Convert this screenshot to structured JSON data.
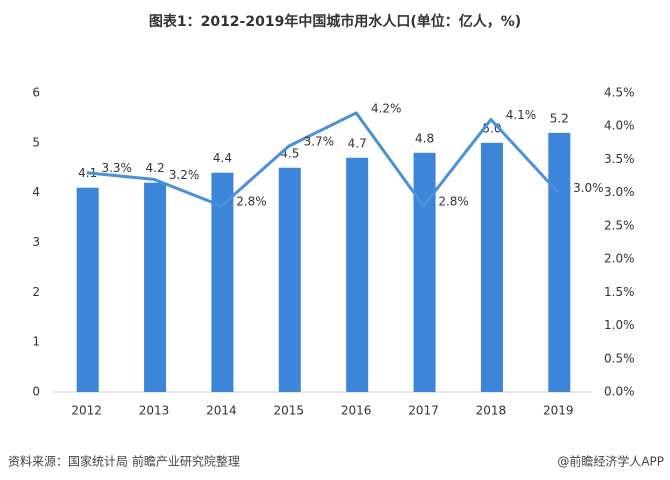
{
  "chart_data": {
    "type": "bar-line",
    "title": "图表1：2012-2019年中国城市用水人口(单位：亿人，%)",
    "source": "资料来源：国家统计局 前瞻产业研究院整理",
    "credit": "@前瞻经济学人APP",
    "categories": [
      "2012",
      "2013",
      "2014",
      "2015",
      "2016",
      "2017",
      "2018",
      "2019"
    ],
    "series": [
      {
        "type": "bar",
        "color": "#3d85d8",
        "values": [
          4.1,
          4.2,
          4.4,
          4.5,
          4.7,
          4.8,
          5.0,
          5.2
        ],
        "value_labels": [
          "4.1",
          "4.2",
          "4.4",
          "4.5",
          "4.7",
          "4.8",
          "5.0",
          "5.2"
        ]
      },
      {
        "type": "line",
        "axis": "y2",
        "color": "#4a90da",
        "values": [
          3.3,
          3.2,
          2.8,
          3.7,
          4.2,
          2.8,
          4.1,
          3.0
        ],
        "value_labels": [
          "3.3%",
          "3.2%",
          "2.8%",
          "3.7%",
          "4.2%",
          "2.8%",
          "4.1%",
          "3.0%"
        ]
      }
    ],
    "ylim": [
      0,
      6
    ],
    "yticks": [
      0,
      1,
      2,
      3,
      4,
      5,
      6
    ],
    "y2lim": [
      0,
      4.5
    ],
    "y2ticks": [
      {
        "value": 0,
        "label": "0.0%"
      },
      {
        "value": 0.5,
        "label": "0.5%"
      },
      {
        "value": 1,
        "label": "1.0%"
      },
      {
        "value": 1.5,
        "label": "1.5%"
      },
      {
        "value": 2,
        "label": "2.0%"
      },
      {
        "value": 2.5,
        "label": "2.5%"
      },
      {
        "value": 3,
        "label": "3.0%"
      },
      {
        "value": 3.5,
        "label": "3.5%"
      },
      {
        "value": 4,
        "label": "4.0%"
      },
      {
        "value": 4.5,
        "label": "4.5%"
      }
    ]
  }
}
